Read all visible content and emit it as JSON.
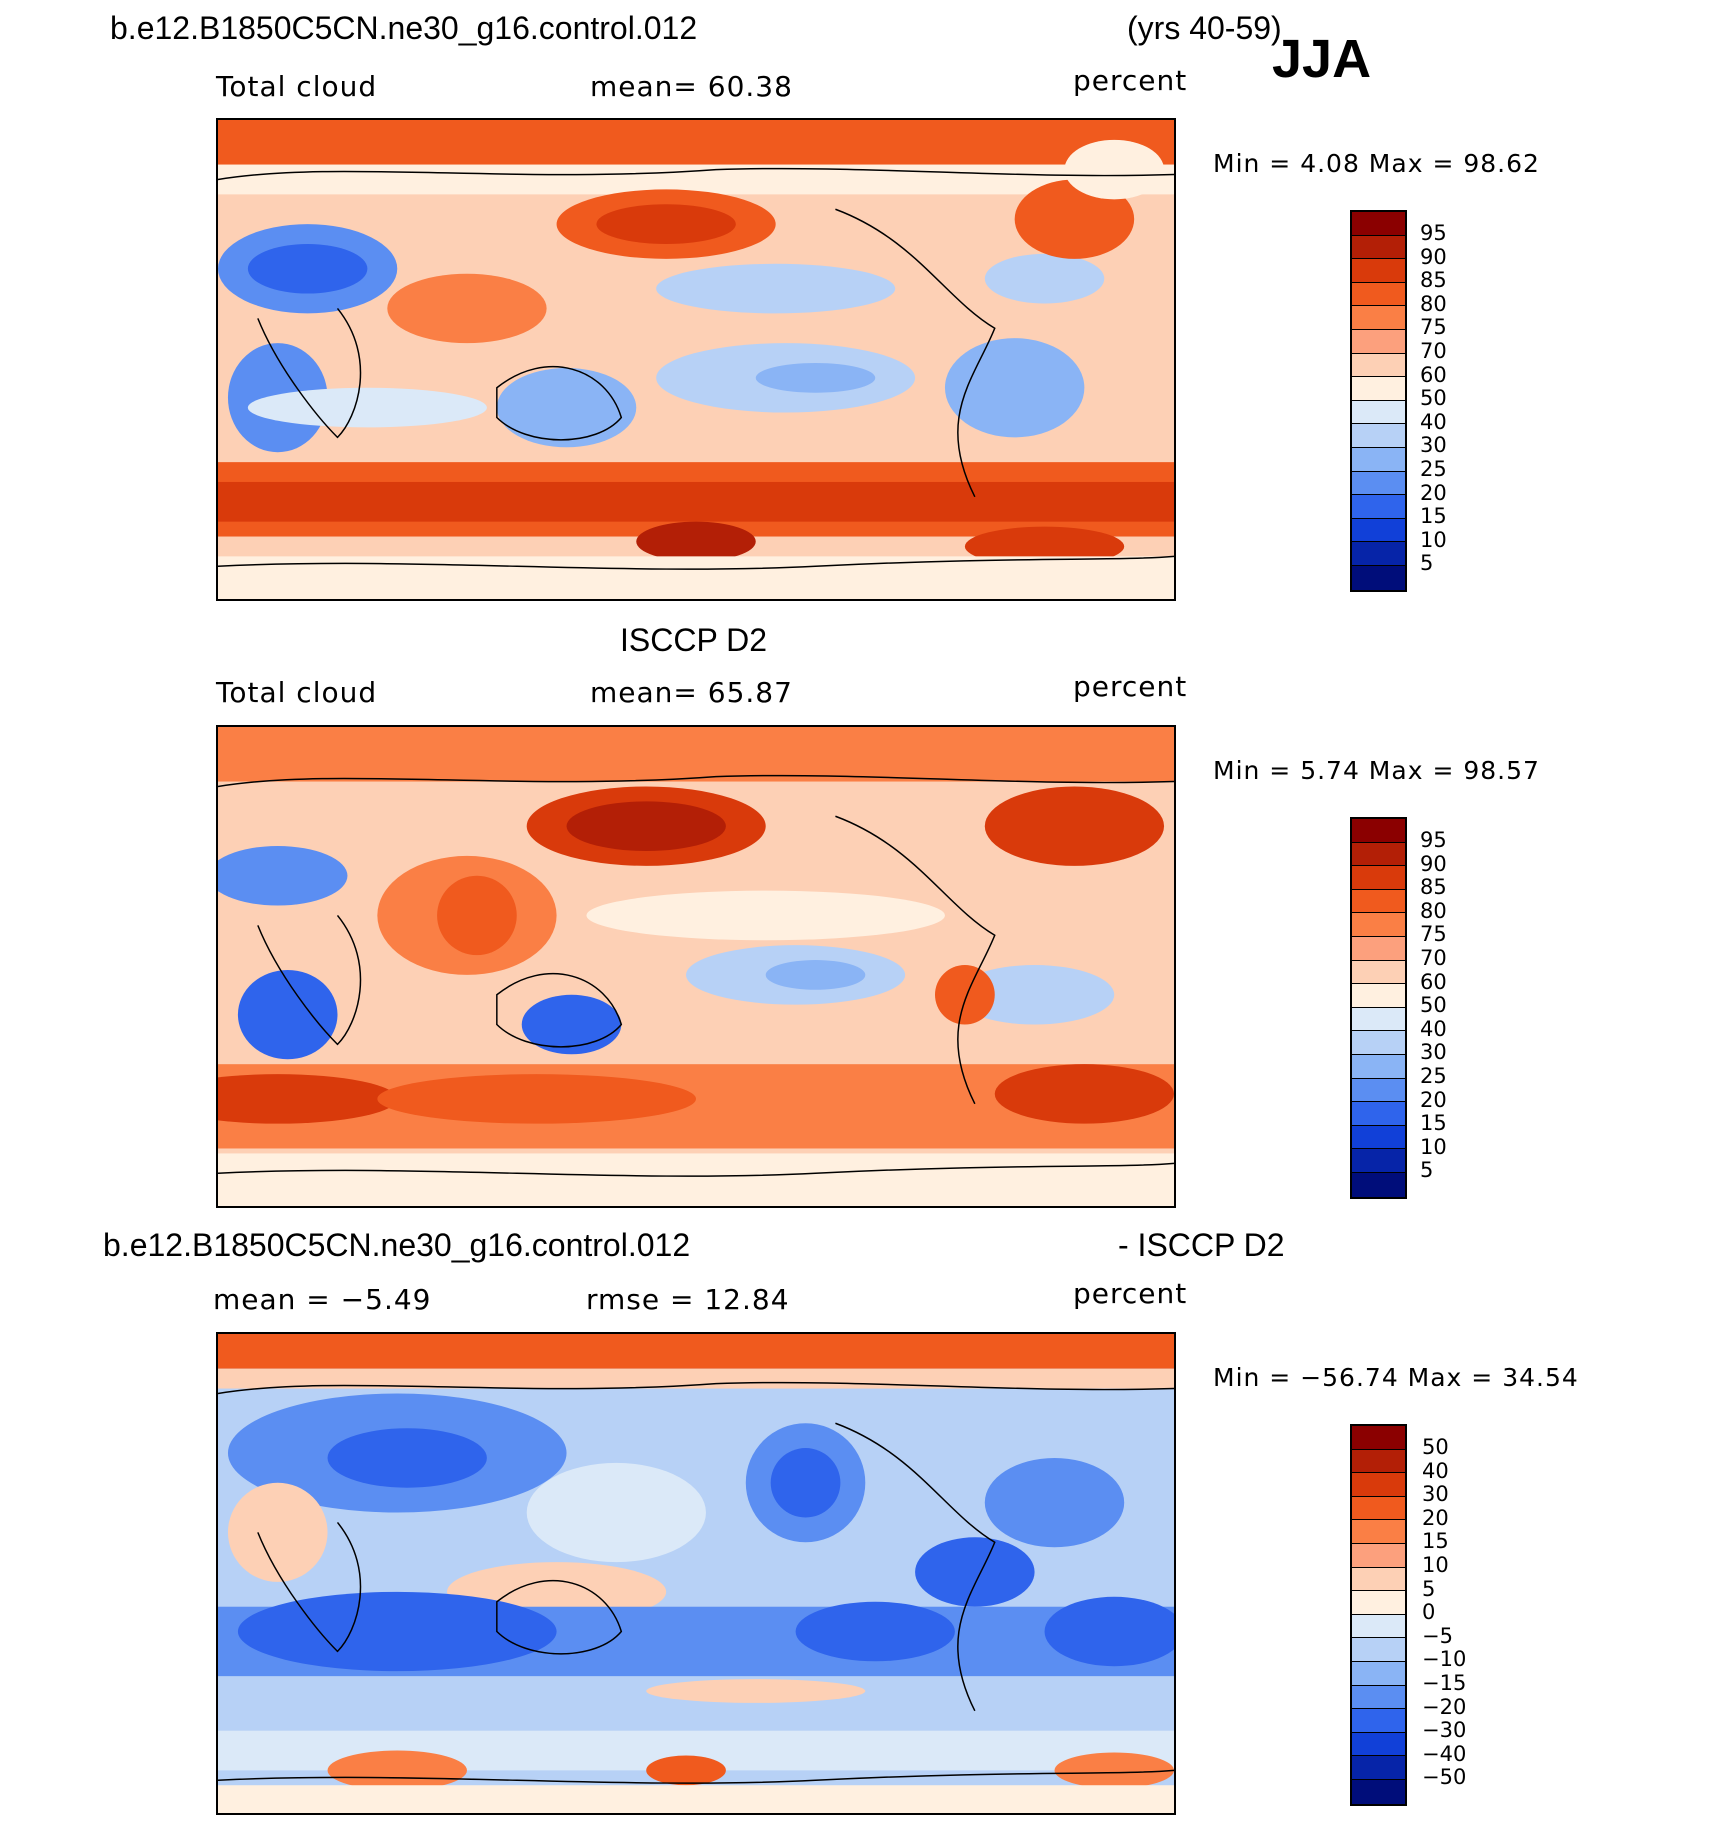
{
  "header": {
    "case_name": "b.e12.B1850C5CN.ne30_g16.control.012",
    "years": "(yrs 40-59)",
    "season": "JJA"
  },
  "panels": [
    {
      "id": "model",
      "left_label": "Total cloud",
      "center_label": "mean=   60.38",
      "right_label": "percent",
      "minmax": "Min =     4.08 Max =    98.62",
      "cbar_colors": [
        "#8b0000",
        "#b31f06",
        "#d93a0b",
        "#f05a1e",
        "#fa7f45",
        "#fca07d",
        "#fdd0b5",
        "#fff0e0",
        "#dbe9f8",
        "#b7d1f6",
        "#8ab4f5",
        "#5b8ef2",
        "#2f64ec",
        "#1140d8",
        "#0624a8",
        "#000d7a"
      ],
      "cbar_labels": [
        "95",
        "90",
        "85",
        "80",
        "75",
        "70",
        "60",
        "50",
        "40",
        "30",
        "25",
        "20",
        "15",
        "10",
        "5"
      ]
    },
    {
      "id": "obs",
      "title": "ISCCP D2",
      "left_label": "Total cloud",
      "center_label": "mean=   65.87",
      "right_label": "percent",
      "minmax": "Min =     5.74 Max =    98.57",
      "cbar_colors": [
        "#8b0000",
        "#b31f06",
        "#d93a0b",
        "#f05a1e",
        "#fa7f45",
        "#fca07d",
        "#fdd0b5",
        "#fff0e0",
        "#dbe9f8",
        "#b7d1f6",
        "#8ab4f5",
        "#5b8ef2",
        "#2f64ec",
        "#1140d8",
        "#0624a8",
        "#000d7a"
      ],
      "cbar_labels": [
        "95",
        "90",
        "85",
        "80",
        "75",
        "70",
        "60",
        "50",
        "40",
        "30",
        "25",
        "20",
        "15",
        "10",
        "5"
      ]
    },
    {
      "id": "diff",
      "title_left": "b.e12.B1850C5CN.ne30_g16.control.012",
      "title_right": "- ISCCP D2",
      "left_label": "mean =   −5.49",
      "center_label": "rmse =    12.84",
      "right_label": "percent",
      "minmax": "Min = −56.74  Max =    34.54",
      "cbar_colors": [
        "#8b0000",
        "#b31f06",
        "#d93a0b",
        "#f05a1e",
        "#fa7f45",
        "#fca07d",
        "#fdd0b5",
        "#fff0e0",
        "#dbe9f8",
        "#b7d1f6",
        "#8ab4f5",
        "#5b8ef2",
        "#2f64ec",
        "#1140d8",
        "#0624a8",
        "#000d7a"
      ],
      "cbar_labels": [
        "50",
        "40",
        "30",
        "20",
        "15",
        "10",
        "5",
        "0",
        "−5",
        "−10",
        "−15",
        "−20",
        "−30",
        "−40",
        "−50"
      ]
    }
  ]
}
